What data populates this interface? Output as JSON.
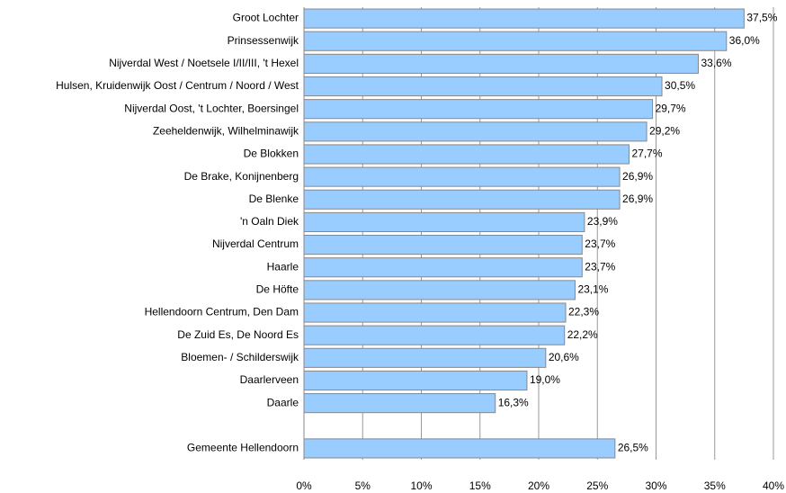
{
  "chart_data": {
    "type": "bar",
    "orientation": "horizontal",
    "categories": [
      "Groot Lochter",
      "Prinsessenwijk",
      "Nijverdal West / Noetsele I/II/III, 't Hexel",
      "Hulsen, Kruidenwijk Oost / Centrum / Noord / West",
      "Nijverdal Oost, 't Lochter, Boersingel",
      "Zeeheldenwijk, Wilhelminawijk",
      "De Blokken",
      "De Brake, Konijnenberg",
      "De Blenke",
      "'n Oaln Diek",
      "Nijverdal Centrum",
      "Haarle",
      "De Höfte",
      "Hellendoorn Centrum, Den Dam",
      "De Zuid Es, De Noord Es",
      "Bloemen- / Schilderswijk",
      "Daarlerveen",
      "Daarle",
      null,
      "Gemeente Hellendoorn"
    ],
    "values": [
      37.5,
      36.0,
      33.6,
      30.5,
      29.7,
      29.2,
      27.7,
      26.9,
      26.9,
      23.9,
      23.7,
      23.7,
      23.1,
      22.3,
      22.2,
      20.6,
      19.0,
      16.3,
      null,
      26.5
    ],
    "value_labels": [
      "37,5%",
      "36,0%",
      "33,6%",
      "30,5%",
      "29,7%",
      "29,2%",
      "27,7%",
      "26,9%",
      "26,9%",
      "23,9%",
      "23,7%",
      "23,7%",
      "23,1%",
      "22,3%",
      "22,2%",
      "20,6%",
      "19,0%",
      "16,3%",
      null,
      "26,5%"
    ],
    "color": "#99ccff",
    "xlim": [
      0,
      40
    ],
    "xticks": [
      {
        "value": 0,
        "label": "0%"
      },
      {
        "value": 5,
        "label": "5%"
      },
      {
        "value": 10,
        "label": "10%"
      },
      {
        "value": 15,
        "label": "15%"
      },
      {
        "value": 20,
        "label": "20%"
      },
      {
        "value": 25,
        "label": "25%"
      },
      {
        "value": 30,
        "label": "30%"
      },
      {
        "value": 35,
        "label": "35%"
      },
      {
        "value": 40,
        "label": "40%"
      }
    ],
    "grid": true
  }
}
